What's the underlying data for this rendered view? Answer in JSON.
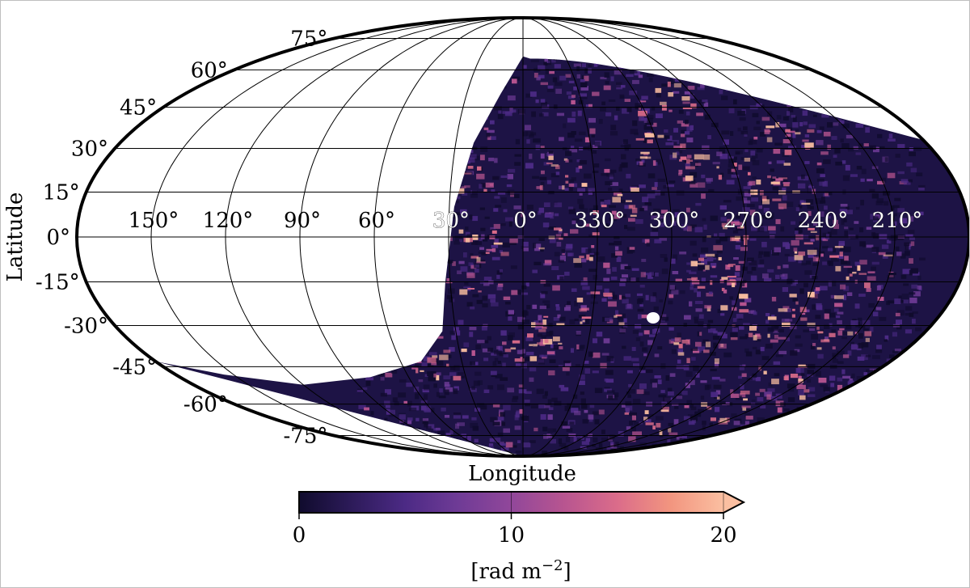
{
  "chart_data": {
    "type": "heatmap",
    "projection": "mollweide",
    "title": "",
    "xlabel": "Longitude",
    "ylabel": "Latitude",
    "longitude_ticks": [
      "150°",
      "120°",
      "90°",
      "60°",
      "30°",
      "0°",
      "330°",
      "300°",
      "270°",
      "240°",
      "210°"
    ],
    "latitude_ticks": [
      {
        "value": 75,
        "label": "75°"
      },
      {
        "value": 60,
        "label": "60°"
      },
      {
        "value": 45,
        "label": "45°"
      },
      {
        "value": 30,
        "label": "30°"
      },
      {
        "value": 15,
        "label": "15°"
      },
      {
        "value": 0,
        "label": "0°"
      },
      {
        "value": -15,
        "label": "-15°"
      },
      {
        "value": -30,
        "label": "-30°"
      },
      {
        "value": -45,
        "label": "-45°"
      },
      {
        "value": -60,
        "label": "-60°"
      },
      {
        "value": -75,
        "label": "-75°"
      }
    ],
    "longitude_range": [
      180,
      -180
    ],
    "latitude_range": [
      -90,
      90
    ],
    "grid": true,
    "coverage": "southern and western sky; empty for Dec > approx +40°",
    "colorbar": {
      "label": "[rad m⁻²]",
      "label_base": "[rad m",
      "label_exponent": "−2",
      "label_close": "]",
      "ticks": [
        {
          "value": 0,
          "label": "0"
        },
        {
          "value": 10,
          "label": "10"
        },
        {
          "value": 20,
          "label": "20"
        }
      ],
      "range": [
        0,
        20
      ],
      "extend": "max",
      "cmap": "magma",
      "colors": [
        "#100b2d",
        "#2d1b5a",
        "#4c2a85",
        "#6f3b96",
        "#91479a",
        "#b85590",
        "#db6c8a",
        "#f2957f",
        "#fbbfa1"
      ]
    }
  }
}
